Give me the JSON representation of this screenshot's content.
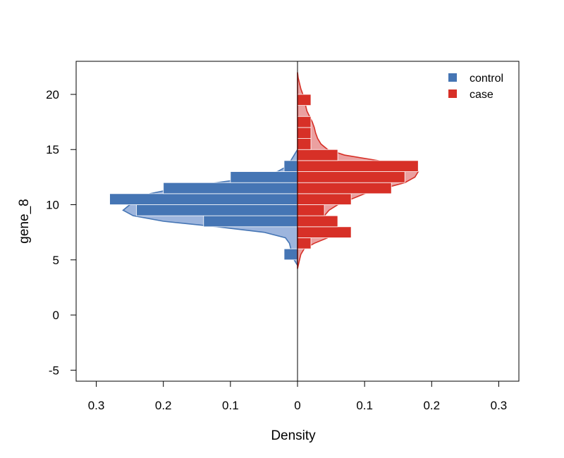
{
  "chart_data": {
    "type": "bar",
    "subtype": "back-to-back histogram with density curves",
    "orientation": "horizontal",
    "xlabel": "Density",
    "ylabel": "gene_8",
    "ylim": [
      -6,
      23
    ],
    "xlim": [
      -0.33,
      0.33
    ],
    "y_ticks": [
      20,
      15,
      10,
      5,
      0,
      -5
    ],
    "y_tick_labels": [
      "20",
      "15",
      "10",
      "5",
      "0",
      "-5"
    ],
    "x_ticks": [
      -0.3,
      -0.2,
      -0.1,
      0,
      0.1,
      0.2,
      0.3
    ],
    "x_tick_labels": [
      "0.3",
      "0.2",
      "0.1",
      "0",
      "0.1",
      "0.2",
      "0.3"
    ],
    "bin_width": 1,
    "grid": false,
    "legend_position": "top-right",
    "series": [
      {
        "name": "control",
        "side": "left",
        "color": "#4575b4",
        "fill_color": "#9db5dd",
        "bins": [
          {
            "y0": 5,
            "y1": 6,
            "value": 0.02
          },
          {
            "y0": 6,
            "y1": 7,
            "value": 0
          },
          {
            "y0": 7,
            "y1": 8,
            "value": 0
          },
          {
            "y0": 8,
            "y1": 9,
            "value": 0.14
          },
          {
            "y0": 9,
            "y1": 10,
            "value": 0.24
          },
          {
            "y0": 10,
            "y1": 11,
            "value": 0.28
          },
          {
            "y0": 11,
            "y1": 12,
            "value": 0.2
          },
          {
            "y0": 12,
            "y1": 13,
            "value": 0.1
          },
          {
            "y0": 13,
            "y1": 14,
            "value": 0.02
          }
        ],
        "density": [
          [
            4.5,
            0.0
          ],
          [
            5.0,
            0.005
          ],
          [
            5.5,
            0.01
          ],
          [
            6.0,
            0.01
          ],
          [
            6.5,
            0.012
          ],
          [
            7.0,
            0.018
          ],
          [
            7.5,
            0.05
          ],
          [
            8.0,
            0.12
          ],
          [
            8.5,
            0.2
          ],
          [
            9.0,
            0.245
          ],
          [
            9.5,
            0.26
          ],
          [
            10.0,
            0.25
          ],
          [
            10.5,
            0.24
          ],
          [
            11.0,
            0.22
          ],
          [
            11.5,
            0.18
          ],
          [
            12.0,
            0.12
          ],
          [
            12.5,
            0.06
          ],
          [
            13.0,
            0.03
          ],
          [
            13.5,
            0.015
          ],
          [
            14.0,
            0.01
          ],
          [
            14.5,
            0.005
          ],
          [
            15.0,
            0.0
          ]
        ]
      },
      {
        "name": "case",
        "side": "right",
        "color": "#d73027",
        "fill_color": "#eba0a0",
        "bins": [
          {
            "y0": 6,
            "y1": 7,
            "value": 0.02
          },
          {
            "y0": 7,
            "y1": 8,
            "value": 0.08
          },
          {
            "y0": 8,
            "y1": 9,
            "value": 0.06
          },
          {
            "y0": 9,
            "y1": 10,
            "value": 0.04
          },
          {
            "y0": 10,
            "y1": 11,
            "value": 0.08
          },
          {
            "y0": 11,
            "y1": 12,
            "value": 0.14
          },
          {
            "y0": 12,
            "y1": 13,
            "value": 0.16
          },
          {
            "y0": 13,
            "y1": 14,
            "value": 0.18
          },
          {
            "y0": 14,
            "y1": 15,
            "value": 0.06
          },
          {
            "y0": 15,
            "y1": 16,
            "value": 0.02
          },
          {
            "y0": 16,
            "y1": 17,
            "value": 0.02
          },
          {
            "y0": 17,
            "y1": 18,
            "value": 0.02
          },
          {
            "y0": 18,
            "y1": 19,
            "value": 0
          },
          {
            "y0": 19,
            "y1": 20,
            "value": 0.02
          }
        ],
        "density": [
          [
            4.2,
            0.0
          ],
          [
            5.0,
            0.003
          ],
          [
            5.5,
            0.005
          ],
          [
            6.0,
            0.01
          ],
          [
            6.5,
            0.025
          ],
          [
            7.0,
            0.045
          ],
          [
            7.5,
            0.055
          ],
          [
            8.0,
            0.05
          ],
          [
            8.5,
            0.045
          ],
          [
            9.0,
            0.04
          ],
          [
            9.5,
            0.047
          ],
          [
            10.0,
            0.06
          ],
          [
            10.5,
            0.08
          ],
          [
            11.0,
            0.1
          ],
          [
            11.5,
            0.13
          ],
          [
            12.0,
            0.16
          ],
          [
            12.5,
            0.175
          ],
          [
            13.0,
            0.18
          ],
          [
            13.5,
            0.165
          ],
          [
            14.0,
            0.12
          ],
          [
            14.5,
            0.07
          ],
          [
            15.0,
            0.045
          ],
          [
            15.5,
            0.035
          ],
          [
            16.0,
            0.03
          ],
          [
            16.5,
            0.027
          ],
          [
            17.0,
            0.025
          ],
          [
            17.5,
            0.022
          ],
          [
            18.0,
            0.018
          ],
          [
            18.5,
            0.014
          ],
          [
            19.0,
            0.012
          ],
          [
            19.5,
            0.01
          ],
          [
            20.0,
            0.008
          ],
          [
            20.5,
            0.005
          ],
          [
            21.0,
            0.003
          ],
          [
            21.5,
            0.001
          ],
          [
            22.0,
            0.0
          ]
        ]
      }
    ]
  }
}
